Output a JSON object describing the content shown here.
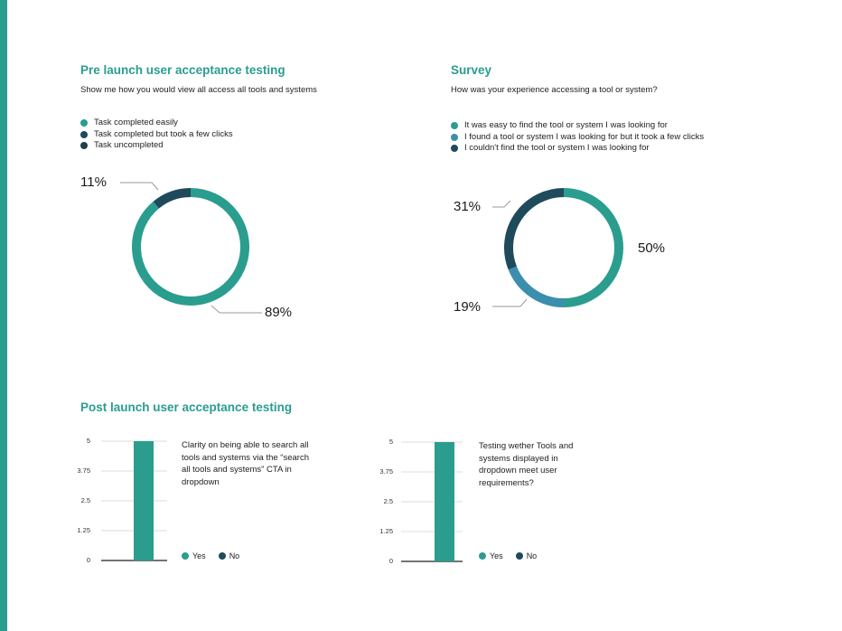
{
  "colors": {
    "accent": "#2a9d8f",
    "teal": "#2a9d8f",
    "blue": "#3b8eae",
    "navy": "#1f4a5c",
    "dark": "#233f45"
  },
  "pre_launch": {
    "title": "Pre launch user acceptance testing",
    "question": "Show me how you would view all access all tools and systems",
    "legend": [
      {
        "label": "Task completed easily",
        "color": "#2a9d8f"
      },
      {
        "label": "Task completed but took a few clicks",
        "color": "#1f4a5c"
      },
      {
        "label": "Task uncompleted",
        "color": "#233f45"
      }
    ],
    "labels": [
      "11%",
      "89%"
    ]
  },
  "survey": {
    "title": "Survey",
    "question": "How was your experience accessing a tool or system?",
    "legend": [
      {
        "label": "It was easy to find the tool or system I was looking for",
        "color": "#2a9d8f"
      },
      {
        "label": "I found a tool or system I was looking for but it took a few clicks",
        "color": "#3b8eae"
      },
      {
        "label": "I couldn't find the tool or system I was looking for",
        "color": "#1f4a5c"
      }
    ],
    "labels": [
      "31%",
      "50%",
      "19%"
    ]
  },
  "post_launch": {
    "title": "Post launch user acceptance testing",
    "bar1_desc": "Clarity on being able to search all tools and systems via the “search all tools and systems” CTA in dropdown",
    "bar2_desc": "Testing wether Tools and systems displayed in dropdown meet user requirements?",
    "yes_label": "Yes",
    "no_label": "No",
    "yticks": [
      "5",
      "3.75",
      "2.5",
      "1.25",
      "0"
    ]
  },
  "chart_data": [
    {
      "type": "pie",
      "title": "Pre launch user acceptance testing",
      "subtitle": "Show me how you would view all access all tools and systems",
      "categories": [
        "Task completed easily",
        "Task completed but took a few clicks",
        "Task uncompleted"
      ],
      "values": [
        89,
        11,
        0
      ],
      "unit": "%",
      "colors": [
        "#2a9d8f",
        "#1f4a5c",
        "#233f45"
      ],
      "style": "donut",
      "legend": "top-left"
    },
    {
      "type": "pie",
      "title": "Survey",
      "subtitle": "How was your experience accessing a tool or system?",
      "categories": [
        "It was easy to find the tool or system I was looking for",
        "I found a tool or system I was looking for but it took a few clicks",
        "I couldn't find the tool or system I was looking for"
      ],
      "values": [
        50,
        19,
        31
      ],
      "unit": "%",
      "colors": [
        "#2a9d8f",
        "#3b8eae",
        "#1f4a5c"
      ],
      "style": "donut",
      "legend": "top-left"
    },
    {
      "type": "bar",
      "title": "Post launch user acceptance testing",
      "subtitle": "Clarity on being able to search all tools and systems via the “search all tools and systems” CTA in dropdown",
      "categories": [
        "Yes",
        "No"
      ],
      "values": [
        5,
        0
      ],
      "colors": [
        "#2a9d8f",
        "#1f4a5c"
      ],
      "ylim": [
        0,
        5
      ],
      "yticks": [
        0,
        1.25,
        2.5,
        3.75,
        5
      ],
      "grid": true,
      "legend": "bottom"
    },
    {
      "type": "bar",
      "title": "Post launch user acceptance testing",
      "subtitle": "Testing wether Tools and systems displayed in dropdown meet user requirements?",
      "categories": [
        "Yes",
        "No"
      ],
      "values": [
        5,
        0
      ],
      "colors": [
        "#2a9d8f",
        "#1f4a5c"
      ],
      "ylim": [
        0,
        5
      ],
      "yticks": [
        0,
        1.25,
        2.5,
        3.75,
        5
      ],
      "grid": true,
      "legend": "bottom"
    }
  ]
}
